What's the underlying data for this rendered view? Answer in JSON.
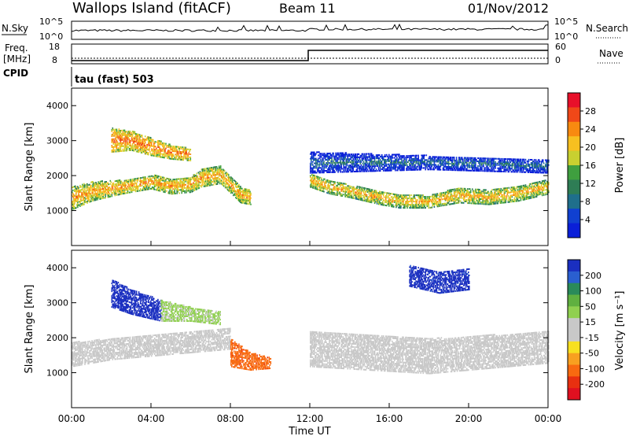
{
  "header": {
    "title": "Wallops Island (fitACF)",
    "beam": "Beam 11",
    "date": "01/Nov/2012"
  },
  "strips": {
    "nsky_label": "N.Sky",
    "nsky_ticks": [
      "10^5",
      "10^0"
    ],
    "nsearch_label": "N.Search",
    "nsearch_ticks": [
      "10^5",
      "10^0"
    ],
    "freq_label_1": "Freq.",
    "freq_label_2": "[MHz]",
    "freq_ticks": [
      "18",
      "8"
    ],
    "nave_label": "Nave",
    "nave_ticks": [
      "60",
      "0"
    ],
    "cpid_label": "CPID",
    "cpid_value": "tau (fast) 503"
  },
  "axes": {
    "xlabel": "Time UT",
    "xticks": [
      "00:00",
      "04:00",
      "08:00",
      "12:00",
      "16:00",
      "20:00",
      "00:00"
    ],
    "ylabel": "Slant Range [km]",
    "yticks": [
      "1000",
      "2000",
      "3000",
      "4000"
    ]
  },
  "colorbars": {
    "power": {
      "label": "Power [dB]",
      "ticks": [
        "28",
        "24",
        "20",
        "16",
        "12",
        "8",
        "4"
      ],
      "colors": [
        "#e8102a",
        "#f04818",
        "#f88a10",
        "#f7c020",
        "#c8d030",
        "#3f9f3f",
        "#2e7d55",
        "#1f6f8b",
        "#1040d0",
        "#0a1fd8"
      ]
    },
    "velocity": {
      "label": "Velocity [m s⁻¹]",
      "ticks": [
        "200",
        "100",
        "50",
        "15",
        "-15",
        "-50",
        "-100",
        "-200"
      ],
      "colors": [
        "#1a2fc0",
        "#2a5fd0",
        "#2a8a5a",
        "#60b040",
        "#90d050",
        "#c8c8c8",
        "#c8c8c8",
        "#f7e020",
        "#f8a020",
        "#f86a10",
        "#e83010",
        "#e01020"
      ]
    }
  },
  "chart_data": [
    {
      "type": "heatmap",
      "name": "power",
      "x_range": [
        "00:00",
        "24:00"
      ],
      "ylim": [
        0,
        4500
      ],
      "units": "dB",
      "clim": [
        0,
        30
      ],
      "bands": [
        {
          "t": [
            0.0,
            1.0,
            2.5,
            4.0,
            5.0,
            6.0,
            6.5,
            7.5,
            8.5,
            9.0
          ],
          "range_low": [
            1050,
            1300,
            1500,
            1650,
            1500,
            1550,
            1700,
            1800,
            1250,
            1200
          ],
          "range_high": [
            1700,
            1850,
            1900,
            2050,
            1950,
            2000,
            2200,
            2300,
            1700,
            1600
          ],
          "power": 22
        },
        {
          "t": [
            2.0,
            3.0,
            4.0,
            5.0,
            6.0
          ],
          "range_low": [
            2700,
            2750,
            2600,
            2500,
            2450
          ],
          "range_high": [
            3400,
            3300,
            3100,
            2900,
            2800
          ],
          "power": 24
        },
        {
          "t": [
            12.0,
            13.0,
            14.0,
            15.5,
            16.5,
            18.0,
            19.5,
            21.0,
            22.5,
            24.0
          ],
          "range_low": [
            1700,
            1500,
            1400,
            1200,
            1100,
            1100,
            1250,
            1200,
            1300,
            1500
          ],
          "range_high": [
            2100,
            1900,
            1750,
            1600,
            1500,
            1450,
            1700,
            1600,
            1750,
            1900
          ],
          "power": 21
        },
        {
          "t": [
            12.0,
            15.0,
            18.0,
            21.0,
            24.0
          ],
          "range_low": [
            2100,
            2150,
            2200,
            2150,
            2100
          ],
          "range_high": [
            2700,
            2650,
            2600,
            2550,
            2500
          ],
          "power": 8
        }
      ]
    },
    {
      "type": "heatmap",
      "name": "velocity",
      "x_range": [
        "00:00",
        "24:00"
      ],
      "ylim": [
        0,
        4500
      ],
      "units": "m s-1",
      "clim": [
        -200,
        200
      ],
      "bands": [
        {
          "t": [
            0.0,
            2.0,
            4.0,
            6.0,
            8.0
          ],
          "range_low": [
            1200,
            1400,
            1500,
            1600,
            1700
          ],
          "range_high": [
            1900,
            2000,
            2100,
            2200,
            2300
          ],
          "velocity": 0
        },
        {
          "t": [
            2.0,
            3.0,
            4.5
          ],
          "range_low": [
            2900,
            2700,
            2500
          ],
          "range_high": [
            3700,
            3400,
            3100
          ],
          "velocity": 200
        },
        {
          "t": [
            4.5,
            6.0,
            7.5
          ],
          "range_low": [
            2500,
            2500,
            2400
          ],
          "range_high": [
            3100,
            2900,
            2800
          ],
          "velocity": 40
        },
        {
          "t": [
            8.0,
            9.0,
            10.0
          ],
          "range_low": [
            1200,
            1100,
            1150
          ],
          "range_high": [
            2000,
            1600,
            1450
          ],
          "velocity": -120
        },
        {
          "t": [
            12.0,
            15.0,
            18.0,
            21.0,
            24.0
          ],
          "range_low": [
            1200,
            1100,
            1000,
            1150,
            1300
          ],
          "range_high": [
            2200,
            2100,
            2000,
            2100,
            2200
          ],
          "velocity": 0
        },
        {
          "t": [
            17.0,
            18.5,
            20.0
          ],
          "range_low": [
            3500,
            3300,
            3400
          ],
          "range_high": [
            4100,
            3900,
            4000
          ],
          "velocity": 180
        }
      ]
    }
  ]
}
